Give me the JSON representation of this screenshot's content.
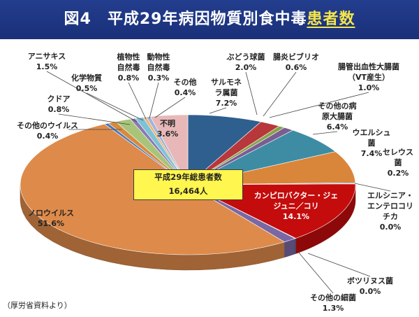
{
  "header": {
    "title_main": "図4　平成29年病因物質別食中毒",
    "title_highlight": "患者数"
  },
  "total": {
    "line1": "平成29年総患者数",
    "line2": "16,464人"
  },
  "source": "（厚労省資料より）",
  "chart_data": {
    "type": "pie",
    "title": "図4　平成29年病因物質別食中毒患者数",
    "unit": "%",
    "slices": [
      {
        "name": "サルモネラ属菌",
        "value": 7.2,
        "label": "7.2%",
        "color": "#2f5f8f"
      },
      {
        "name": "ぶどう球菌",
        "value": 2.0,
        "label": "2.0%",
        "color": "#b7373a"
      },
      {
        "name": "腸炎ビブリオ",
        "value": 0.6,
        "label": "0.6%",
        "color": "#86a34a"
      },
      {
        "name": "腸管出血性大腸菌（VT産生）",
        "value": 1.0,
        "label": "1.0%",
        "color": "#7a5d93"
      },
      {
        "name": "その他の病原大腸菌",
        "value": 6.4,
        "label": "6.4%",
        "color": "#3e8ca4"
      },
      {
        "name": "ウエルシュ菌",
        "value": 7.4,
        "label": "7.4%",
        "color": "#d9853a"
      },
      {
        "name": "セレウス菌",
        "value": 0.2,
        "label": "0.2%",
        "color": "#3f6fa8"
      },
      {
        "name": "エルシニア・エンテロコリチカ",
        "value": 0.0,
        "label": "0.0%",
        "color": "#b33a3a"
      },
      {
        "name": "カンピロバクター・ジェジュニ／コリ",
        "value": 14.1,
        "label": "14.1%",
        "color": "#c40c0c"
      },
      {
        "name": "ボツリヌス菌",
        "value": 0.0,
        "label": "0.0%",
        "color": "#6f8fbf"
      },
      {
        "name": "その他の細菌",
        "value": 1.3,
        "label": "1.3%",
        "color": "#7a68a4"
      },
      {
        "name": "ノロウイルス",
        "value": 51.6,
        "label": "51.6%",
        "color": "#de8a4a"
      },
      {
        "name": "その他のウイルス",
        "value": 0.4,
        "label": "0.4%",
        "color": "#4a79b8"
      },
      {
        "name": "クドア",
        "value": 0.8,
        "label": "0.8%",
        "color": "#d88a3e"
      },
      {
        "name": "アニサキス",
        "value": 1.5,
        "label": "1.5%",
        "color": "#a8c47a"
      },
      {
        "name": "化学物質",
        "value": 0.5,
        "label": "0.5%",
        "color": "#8a7ab0"
      },
      {
        "name": "植物性自然毒",
        "value": 0.8,
        "label": "0.8%",
        "color": "#7ec2d6"
      },
      {
        "name": "動物性自然毒",
        "value": 0.3,
        "label": "0.3%",
        "color": "#f0b070"
      },
      {
        "name": "その他",
        "value": 0.4,
        "label": "0.4%",
        "color": "#9fb4d8"
      },
      {
        "name": "不明",
        "value": 3.6,
        "label": "3.6%",
        "color": "#e8b8b8"
      }
    ],
    "start": "12 o'clock",
    "direction": "clockwise",
    "style": "3d-tilted"
  }
}
